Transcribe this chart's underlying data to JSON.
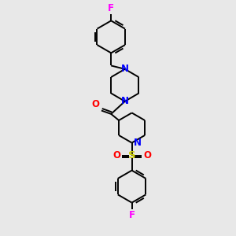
{
  "bg_color": "#e8e8e8",
  "atom_colors": {
    "N": "#0000ff",
    "O": "#ff0000",
    "S": "#cccc00",
    "F": "#ff00ff",
    "C": "#000000"
  },
  "bond_color": "#000000"
}
